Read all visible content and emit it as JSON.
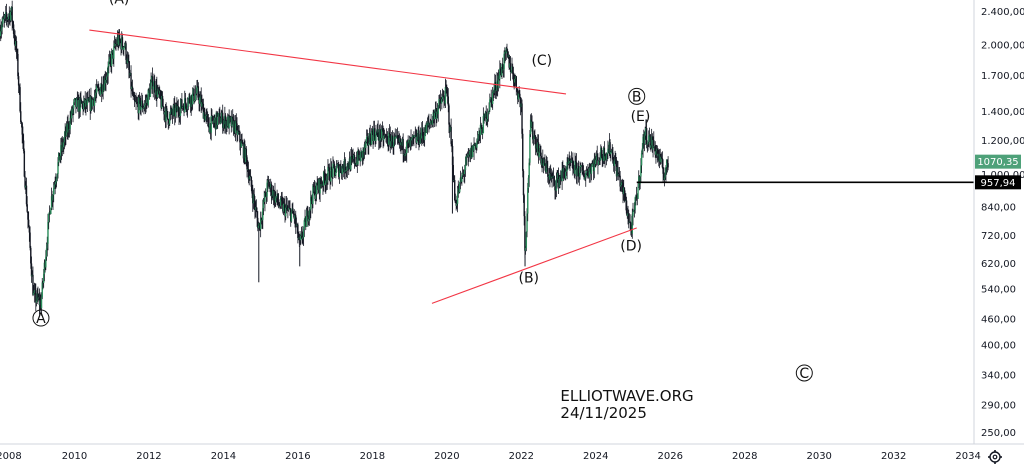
{
  "chart_data": {
    "type": "candlestick",
    "y_scale": "log",
    "ylim": [
      235,
      2550
    ],
    "xlim": [
      2008.0,
      2035.5
    ],
    "y_ticks": [
      {
        "value": 2400,
        "label": "2.400,00"
      },
      {
        "value": 2000,
        "label": "2.000,00"
      },
      {
        "value": 1700,
        "label": "1.700,00"
      },
      {
        "value": 1400,
        "label": "1.400,00"
      },
      {
        "value": 1200,
        "label": "1.200,00"
      },
      {
        "value": 1000,
        "label": "1.000,00"
      },
      {
        "value": 840,
        "label": "840,00"
      },
      {
        "value": 720,
        "label": "720,00"
      },
      {
        "value": 620,
        "label": "620,00"
      },
      {
        "value": 540,
        "label": "540,00"
      },
      {
        "value": 460,
        "label": "460,00"
      },
      {
        "value": 400,
        "label": "400,00"
      },
      {
        "value": 340,
        "label": "340,00"
      },
      {
        "value": 290,
        "label": "290,00"
      },
      {
        "value": 250,
        "label": "250,00"
      }
    ],
    "x_ticks": [
      {
        "value": 2008,
        "label": "2008"
      },
      {
        "value": 2010,
        "label": "2010"
      },
      {
        "value": 2012,
        "label": "2012"
      },
      {
        "value": 2014,
        "label": "2014"
      },
      {
        "value": 2016,
        "label": "2016"
      },
      {
        "value": 2018,
        "label": "2018"
      },
      {
        "value": 2020,
        "label": "2020"
      },
      {
        "value": 2022,
        "label": "2022"
      },
      {
        "value": 2024,
        "label": "2024"
      },
      {
        "value": 2026,
        "label": "2026"
      },
      {
        "value": 2028,
        "label": "2028"
      },
      {
        "value": 2030,
        "label": "2030"
      },
      {
        "value": 2032,
        "label": "2032"
      },
      {
        "value": 2034,
        "label": "2034"
      }
    ],
    "price_path": [
      [
        2008.0,
        2200
      ],
      [
        2008.3,
        2400
      ],
      [
        2008.45,
        1900
      ],
      [
        2008.7,
        900
      ],
      [
        2008.9,
        520
      ],
      [
        2009.1,
        500
      ],
      [
        2009.35,
        850
      ],
      [
        2009.6,
        1100
      ],
      [
        2010.0,
        1450
      ],
      [
        2010.4,
        1450
      ],
      [
        2010.8,
        1650
      ],
      [
        2011.15,
        2050
      ],
      [
        2011.35,
        2000
      ],
      [
        2011.6,
        1450
      ],
      [
        2011.9,
        1450
      ],
      [
        2012.1,
        1650
      ],
      [
        2012.5,
        1350
      ],
      [
        2012.9,
        1450
      ],
      [
        2013.3,
        1550
      ],
      [
        2013.6,
        1300
      ],
      [
        2013.9,
        1350
      ],
      [
        2014.3,
        1300
      ],
      [
        2014.6,
        1100
      ],
      [
        2014.95,
        750
      ],
      [
        2015.2,
        950
      ],
      [
        2015.5,
        850
      ],
      [
        2015.9,
        800
      ],
      [
        2016.05,
        680
      ],
      [
        2016.4,
        900
      ],
      [
        2016.8,
        1000
      ],
      [
        2017.3,
        1050
      ],
      [
        2017.7,
        1100
      ],
      [
        2018.0,
        1250
      ],
      [
        2018.5,
        1200
      ],
      [
        2018.9,
        1150
      ],
      [
        2019.4,
        1250
      ],
      [
        2019.8,
        1450
      ],
      [
        2020.0,
        1550
      ],
      [
        2020.15,
        1100
      ],
      [
        2020.22,
        850
      ],
      [
        2020.5,
        1050
      ],
      [
        2020.9,
        1250
      ],
      [
        2021.3,
        1600
      ],
      [
        2021.6,
        1900
      ],
      [
        2021.8,
        1700
      ],
      [
        2022.0,
        1450
      ],
      [
        2022.1,
        650
      ],
      [
        2022.25,
        1300
      ],
      [
        2022.6,
        1050
      ],
      [
        2022.9,
        950
      ],
      [
        2023.3,
        1050
      ],
      [
        2023.7,
        1000
      ],
      [
        2024.1,
        1100
      ],
      [
        2024.4,
        1150
      ],
      [
        2024.75,
        900
      ],
      [
        2024.95,
        740
      ],
      [
        2025.15,
        950
      ],
      [
        2025.3,
        1250
      ],
      [
        2025.6,
        1150
      ],
      [
        2025.85,
        1000
      ],
      [
        2025.95,
        1070
      ]
    ],
    "trendlines": [
      {
        "from": [
          2010.4,
          2170
        ],
        "to": [
          2023.2,
          1540
        ],
        "color": "#f23645"
      },
      {
        "from": [
          2019.6,
          500
        ],
        "to": [
          2025.1,
          750
        ],
        "color": "#f23645"
      }
    ],
    "horizontal_level": {
      "start": 2025.1,
      "value": 957.94,
      "color": "#000000"
    },
    "price_labels": [
      {
        "label": "1070,35",
        "value": 1070.35,
        "color": "#4ea179"
      },
      {
        "label": "957,94",
        "value": 957.94,
        "color": "#000000"
      }
    ],
    "annotations": [
      {
        "label": "(A)",
        "x": 2011.2,
        "y": 2500,
        "circled": false
      },
      {
        "label": "A",
        "x": 2009.1,
        "y": 450,
        "circled": true
      },
      {
        "label": "(C)",
        "x": 2022.55,
        "y": 1800,
        "circled": false
      },
      {
        "label": "(B)",
        "x": 2022.2,
        "y": 560,
        "circled": false
      },
      {
        "label": "B",
        "x": 2025.1,
        "y": 1480,
        "circled": true
      },
      {
        "label": "(E)",
        "x": 2025.2,
        "y": 1330,
        "circled": false
      },
      {
        "label": "(D)",
        "x": 2024.95,
        "y": 665,
        "circled": false
      },
      {
        "label": "C",
        "x": 2029.6,
        "y": 335,
        "circled": true
      }
    ],
    "watermark": {
      "line1": "ELLIOTWAVE.ORG",
      "line2": "24/11/2025",
      "x": 2023.05,
      "y": 350
    }
  },
  "ui": {
    "settings_icon": "gear-icon"
  }
}
